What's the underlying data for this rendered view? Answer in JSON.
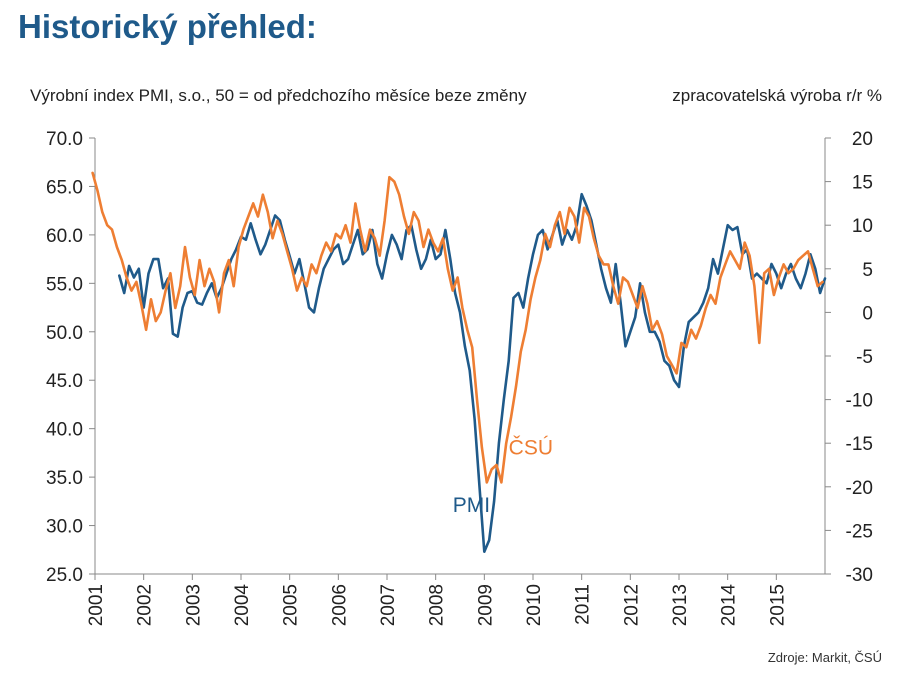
{
  "heading": "Historický přehled:",
  "source": "Zdroje: Markit,  ČSÚ",
  "chart_data": {
    "type": "line",
    "ylabel_left": "Výrobní index PMI, s.o., 50 = od předchozího měsíce beze změny",
    "ylabel_right": "zpracovatelská výroba r/r %",
    "ylim_left": [
      25,
      70
    ],
    "ylim_right": [
      -30,
      20
    ],
    "yticks_left": [
      "70.0",
      "65.0",
      "60.0",
      "55.0",
      "50.0",
      "45.0",
      "40.0",
      "35.0",
      "30.0",
      "25.0"
    ],
    "yticks_right": [
      "20",
      "15",
      "10",
      "5",
      "0",
      "-5",
      "-10",
      "-15",
      "-20",
      "-25",
      "-30"
    ],
    "x_categories": [
      "2001",
      "2002",
      "2003",
      "2004",
      "2005",
      "2006",
      "2007",
      "2008",
      "2009",
      "2010",
      "2011",
      "2012",
      "2013",
      "2014",
      "2015"
    ],
    "grid": false,
    "series": [
      {
        "name": "PMI",
        "axis": "left",
        "color": "#1f5a8a",
        "points": [
          [
            2001.5,
            55.8
          ],
          [
            2001.6,
            54.0
          ],
          [
            2001.7,
            56.8
          ],
          [
            2001.8,
            55.6
          ],
          [
            2001.9,
            56.5
          ],
          [
            2002.0,
            52.5
          ],
          [
            2002.1,
            56.0
          ],
          [
            2002.2,
            57.5
          ],
          [
            2002.3,
            57.5
          ],
          [
            2002.4,
            54.5
          ],
          [
            2002.5,
            55.5
          ],
          [
            2002.6,
            49.8
          ],
          [
            2002.7,
            49.5
          ],
          [
            2002.8,
            52.5
          ],
          [
            2002.9,
            54.0
          ],
          [
            2003.0,
            54.2
          ],
          [
            2003.1,
            53.0
          ],
          [
            2003.2,
            52.8
          ],
          [
            2003.3,
            54.0
          ],
          [
            2003.4,
            55.0
          ],
          [
            2003.5,
            53.5
          ],
          [
            2003.6,
            54.5
          ],
          [
            2003.7,
            56.0
          ],
          [
            2003.8,
            57.5
          ],
          [
            2003.9,
            58.5
          ],
          [
            2004.0,
            59.8
          ],
          [
            2004.1,
            59.5
          ],
          [
            2004.2,
            61.2
          ],
          [
            2004.3,
            59.5
          ],
          [
            2004.4,
            58.0
          ],
          [
            2004.5,
            59.0
          ],
          [
            2004.6,
            60.5
          ],
          [
            2004.7,
            62.0
          ],
          [
            2004.8,
            61.5
          ],
          [
            2004.9,
            59.5
          ],
          [
            2005.0,
            57.8
          ],
          [
            2005.1,
            56.0
          ],
          [
            2005.2,
            57.5
          ],
          [
            2005.3,
            55.0
          ],
          [
            2005.4,
            52.5
          ],
          [
            2005.5,
            52.0
          ],
          [
            2005.6,
            54.5
          ],
          [
            2005.7,
            56.5
          ],
          [
            2005.8,
            57.5
          ],
          [
            2005.9,
            58.5
          ],
          [
            2006.0,
            59.0
          ],
          [
            2006.1,
            57.0
          ],
          [
            2006.2,
            57.5
          ],
          [
            2006.3,
            59.0
          ],
          [
            2006.4,
            60.5
          ],
          [
            2006.5,
            58.0
          ],
          [
            2006.6,
            58.5
          ],
          [
            2006.7,
            60.5
          ],
          [
            2006.8,
            57.0
          ],
          [
            2006.9,
            55.5
          ],
          [
            2007.0,
            58.0
          ],
          [
            2007.1,
            60.0
          ],
          [
            2007.2,
            59.0
          ],
          [
            2007.3,
            57.5
          ],
          [
            2007.4,
            60.5
          ],
          [
            2007.5,
            61.0
          ],
          [
            2007.6,
            58.5
          ],
          [
            2007.7,
            56.5
          ],
          [
            2007.8,
            57.5
          ],
          [
            2007.9,
            59.5
          ],
          [
            2008.0,
            57.5
          ],
          [
            2008.1,
            58.0
          ],
          [
            2008.2,
            60.5
          ],
          [
            2008.3,
            57.5
          ],
          [
            2008.4,
            54.0
          ],
          [
            2008.5,
            52.0
          ],
          [
            2008.6,
            48.5
          ],
          [
            2008.7,
            46.0
          ],
          [
            2008.8,
            41.0
          ],
          [
            2008.9,
            34.0
          ],
          [
            2009.0,
            27.3
          ],
          [
            2009.1,
            28.5
          ],
          [
            2009.2,
            32.5
          ],
          [
            2009.3,
            38.5
          ],
          [
            2009.4,
            43.0
          ],
          [
            2009.5,
            47.0
          ],
          [
            2009.6,
            53.5
          ],
          [
            2009.7,
            54.0
          ],
          [
            2009.8,
            52.5
          ],
          [
            2009.9,
            55.5
          ],
          [
            2010.0,
            58.0
          ],
          [
            2010.1,
            60.0
          ],
          [
            2010.2,
            60.5
          ],
          [
            2010.3,
            58.5
          ],
          [
            2010.4,
            60.0
          ],
          [
            2010.5,
            61.5
          ],
          [
            2010.6,
            59.0
          ],
          [
            2010.7,
            60.5
          ],
          [
            2010.8,
            59.5
          ],
          [
            2010.9,
            61.0
          ],
          [
            2011.0,
            64.2
          ],
          [
            2011.1,
            63.0
          ],
          [
            2011.2,
            61.5
          ],
          [
            2011.3,
            59.0
          ],
          [
            2011.4,
            56.5
          ],
          [
            2011.5,
            54.5
          ],
          [
            2011.6,
            53.0
          ],
          [
            2011.7,
            57.0
          ],
          [
            2011.8,
            53.0
          ],
          [
            2011.9,
            48.5
          ],
          [
            2012.0,
            50.0
          ],
          [
            2012.1,
            51.5
          ],
          [
            2012.2,
            55.0
          ],
          [
            2012.3,
            52.0
          ],
          [
            2012.4,
            50.0
          ],
          [
            2012.5,
            50.0
          ],
          [
            2012.6,
            49.0
          ],
          [
            2012.7,
            47.0
          ],
          [
            2012.8,
            46.5
          ],
          [
            2012.9,
            45.0
          ],
          [
            2013.0,
            44.3
          ],
          [
            2013.1,
            48.5
          ],
          [
            2013.2,
            51.0
          ],
          [
            2013.3,
            51.5
          ],
          [
            2013.4,
            52.0
          ],
          [
            2013.5,
            53.0
          ],
          [
            2013.6,
            54.5
          ],
          [
            2013.7,
            57.5
          ],
          [
            2013.8,
            56.0
          ],
          [
            2013.9,
            58.5
          ],
          [
            2014.0,
            61.0
          ],
          [
            2014.1,
            60.5
          ],
          [
            2014.2,
            60.8
          ],
          [
            2014.3,
            58.0
          ],
          [
            2014.4,
            58.5
          ],
          [
            2014.5,
            55.5
          ],
          [
            2014.6,
            56.0
          ],
          [
            2014.7,
            55.5
          ],
          [
            2014.8,
            55.0
          ],
          [
            2014.9,
            57.0
          ],
          [
            2015.0,
            56.0
          ],
          [
            2015.1,
            54.5
          ],
          [
            2015.2,
            56.0
          ],
          [
            2015.3,
            57.0
          ],
          [
            2015.4,
            55.5
          ],
          [
            2015.5,
            54.5
          ],
          [
            2015.6,
            56.0
          ],
          [
            2015.7,
            58.0
          ],
          [
            2015.8,
            56.5
          ],
          [
            2015.9,
            54.0
          ],
          [
            2016.0,
            55.5
          ]
        ]
      },
      {
        "name": "ČSÚ",
        "axis": "right",
        "color": "#ee7e33",
        "points": [
          [
            2000.95,
            16.0
          ],
          [
            2001.05,
            14.0
          ],
          [
            2001.15,
            11.5
          ],
          [
            2001.25,
            10.0
          ],
          [
            2001.35,
            9.5
          ],
          [
            2001.45,
            7.5
          ],
          [
            2001.55,
            6.0
          ],
          [
            2001.65,
            4.0
          ],
          [
            2001.75,
            2.5
          ],
          [
            2001.85,
            3.5
          ],
          [
            2001.95,
            1.0
          ],
          [
            2002.05,
            -2.0
          ],
          [
            2002.15,
            1.5
          ],
          [
            2002.25,
            -1.0
          ],
          [
            2002.35,
            0.0
          ],
          [
            2002.45,
            2.5
          ],
          [
            2002.55,
            4.5
          ],
          [
            2002.65,
            0.5
          ],
          [
            2002.75,
            3.0
          ],
          [
            2002.85,
            7.5
          ],
          [
            2002.95,
            4.0
          ],
          [
            2003.05,
            2.0
          ],
          [
            2003.15,
            6.0
          ],
          [
            2003.25,
            3.0
          ],
          [
            2003.35,
            5.0
          ],
          [
            2003.45,
            3.5
          ],
          [
            2003.55,
            0.0
          ],
          [
            2003.65,
            4.5
          ],
          [
            2003.75,
            6.0
          ],
          [
            2003.85,
            3.0
          ],
          [
            2003.95,
            7.5
          ],
          [
            2004.05,
            9.5
          ],
          [
            2004.15,
            11.0
          ],
          [
            2004.25,
            12.5
          ],
          [
            2004.35,
            11.0
          ],
          [
            2004.45,
            13.5
          ],
          [
            2004.55,
            11.5
          ],
          [
            2004.65,
            8.5
          ],
          [
            2004.75,
            10.5
          ],
          [
            2004.85,
            9.0
          ],
          [
            2004.95,
            7.0
          ],
          [
            2005.05,
            5.0
          ],
          [
            2005.15,
            2.5
          ],
          [
            2005.25,
            4.0
          ],
          [
            2005.35,
            3.0
          ],
          [
            2005.45,
            5.5
          ],
          [
            2005.55,
            4.5
          ],
          [
            2005.65,
            6.5
          ],
          [
            2005.75,
            8.0
          ],
          [
            2005.85,
            7.0
          ],
          [
            2005.95,
            9.0
          ],
          [
            2006.05,
            8.5
          ],
          [
            2006.15,
            10.0
          ],
          [
            2006.25,
            8.0
          ],
          [
            2006.35,
            12.5
          ],
          [
            2006.45,
            9.5
          ],
          [
            2006.55,
            7.0
          ],
          [
            2006.65,
            9.5
          ],
          [
            2006.75,
            8.5
          ],
          [
            2006.85,
            6.5
          ],
          [
            2006.95,
            10.5
          ],
          [
            2007.05,
            15.5
          ],
          [
            2007.15,
            15.0
          ],
          [
            2007.25,
            13.5
          ],
          [
            2007.35,
            11.0
          ],
          [
            2007.45,
            9.0
          ],
          [
            2007.55,
            11.5
          ],
          [
            2007.65,
            10.5
          ],
          [
            2007.75,
            7.5
          ],
          [
            2007.85,
            9.5
          ],
          [
            2007.95,
            8.0
          ],
          [
            2008.05,
            7.0
          ],
          [
            2008.15,
            8.5
          ],
          [
            2008.25,
            5.0
          ],
          [
            2008.35,
            2.5
          ],
          [
            2008.45,
            4.0
          ],
          [
            2008.55,
            0.5
          ],
          [
            2008.65,
            -2.0
          ],
          [
            2008.75,
            -4.0
          ],
          [
            2008.85,
            -10.0
          ],
          [
            2008.95,
            -15.5
          ],
          [
            2009.05,
            -19.5
          ],
          [
            2009.15,
            -18.0
          ],
          [
            2009.25,
            -17.5
          ],
          [
            2009.35,
            -19.5
          ],
          [
            2009.45,
            -15.0
          ],
          [
            2009.55,
            -12.0
          ],
          [
            2009.65,
            -8.5
          ],
          [
            2009.75,
            -4.5
          ],
          [
            2009.85,
            -2.0
          ],
          [
            2009.95,
            1.5
          ],
          [
            2010.05,
            4.0
          ],
          [
            2010.15,
            6.0
          ],
          [
            2010.25,
            9.0
          ],
          [
            2010.35,
            7.5
          ],
          [
            2010.45,
            10.0
          ],
          [
            2010.55,
            11.5
          ],
          [
            2010.65,
            9.0
          ],
          [
            2010.75,
            12.0
          ],
          [
            2010.85,
            11.0
          ],
          [
            2010.95,
            8.0
          ],
          [
            2011.05,
            12.0
          ],
          [
            2011.15,
            11.0
          ],
          [
            2011.25,
            8.5
          ],
          [
            2011.35,
            6.5
          ],
          [
            2011.45,
            5.5
          ],
          [
            2011.55,
            5.5
          ],
          [
            2011.65,
            3.0
          ],
          [
            2011.75,
            1.0
          ],
          [
            2011.85,
            4.0
          ],
          [
            2011.95,
            3.5
          ],
          [
            2012.05,
            2.0
          ],
          [
            2012.15,
            0.5
          ],
          [
            2012.25,
            3.0
          ],
          [
            2012.35,
            1.0
          ],
          [
            2012.45,
            -2.0
          ],
          [
            2012.55,
            -1.0
          ],
          [
            2012.65,
            -2.5
          ],
          [
            2012.75,
            -5.0
          ],
          [
            2012.85,
            -6.0
          ],
          [
            2012.95,
            -7.0
          ],
          [
            2013.05,
            -3.5
          ],
          [
            2013.15,
            -4.0
          ],
          [
            2013.25,
            -2.0
          ],
          [
            2013.35,
            -3.0
          ],
          [
            2013.45,
            -1.5
          ],
          [
            2013.55,
            0.5
          ],
          [
            2013.65,
            2.0
          ],
          [
            2013.75,
            1.0
          ],
          [
            2013.85,
            4.0
          ],
          [
            2013.95,
            5.5
          ],
          [
            2014.05,
            7.0
          ],
          [
            2014.15,
            6.0
          ],
          [
            2014.25,
            5.0
          ],
          [
            2014.35,
            8.0
          ],
          [
            2014.45,
            6.5
          ],
          [
            2014.55,
            3.0
          ],
          [
            2014.65,
            -3.5
          ],
          [
            2014.75,
            4.5
          ],
          [
            2014.85,
            5.0
          ],
          [
            2014.95,
            2.0
          ],
          [
            2015.05,
            4.0
          ],
          [
            2015.15,
            5.5
          ],
          [
            2015.25,
            4.5
          ],
          [
            2015.35,
            5.0
          ],
          [
            2015.45,
            6.0
          ],
          [
            2015.55,
            6.5
          ],
          [
            2015.65,
            7.0
          ],
          [
            2015.75,
            5.0
          ],
          [
            2015.85,
            3.0
          ],
          [
            2015.95,
            3.5
          ]
        ]
      }
    ],
    "annotations": [
      {
        "text": "PMI",
        "series": "PMI"
      },
      {
        "text": "ČSÚ",
        "series": "ČSÚ"
      }
    ]
  }
}
